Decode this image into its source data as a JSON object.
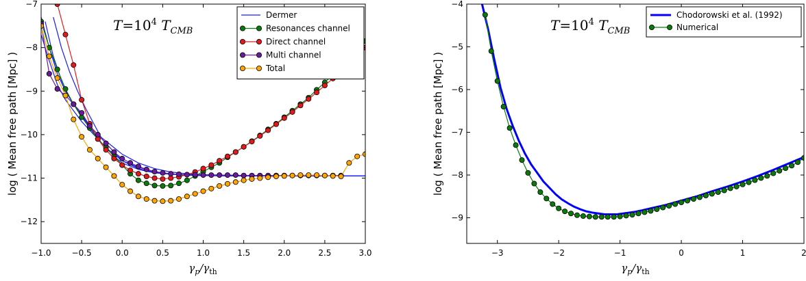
{
  "colors": {
    "dermer": "#1a1aff",
    "resonances": "#0a7a0a",
    "direct": "#e31a1c",
    "multi": "#6a1b9a",
    "total": "#ffa500",
    "chodorowski": "#0000ff",
    "numerical": "#0a7a0a"
  },
  "chart_data": [
    {
      "type": "line",
      "annotation": "T=10^4 T_CMB",
      "xlabel": "γp/γth",
      "ylabel": "log ( Mean free  path  [Mpc] )",
      "xlim": [
        -1.0,
        3.0
      ],
      "ylim": [
        -12.5,
        -7.0
      ],
      "xticks": [
        "−1.0",
        "−0.5",
        "0.0",
        "0.5",
        "1.0",
        "1.5",
        "2.0",
        "2.5",
        "3.0"
      ],
      "yticks": [
        "−7",
        "−8",
        "−9",
        "−10",
        "−11",
        "−12"
      ],
      "legend_position": "top-right",
      "grid": false,
      "series": [
        {
          "name": "Dermer",
          "style": "line",
          "color_key": "dermer",
          "curves": [
            [
              [
                -1.0,
                -7.3
              ],
              [
                -0.9,
                -8.0
              ],
              [
                -0.8,
                -8.6
              ],
              [
                -0.7,
                -9.0
              ],
              [
                -0.6,
                -9.3
              ],
              [
                -0.5,
                -9.55
              ],
              [
                -0.4,
                -9.8
              ],
              [
                -0.3,
                -10.0
              ],
              [
                -0.2,
                -10.15
              ],
              [
                -0.1,
                -10.3
              ],
              [
                0.0,
                -10.45
              ],
              [
                0.2,
                -10.65
              ],
              [
                0.4,
                -10.78
              ],
              [
                0.6,
                -10.86
              ],
              [
                0.8,
                -10.9
              ],
              [
                1.0,
                -10.92
              ],
              [
                1.5,
                -10.94
              ],
              [
                2.0,
                -10.95
              ],
              [
                3.0,
                -10.95
              ]
            ],
            [
              [
                -1.0,
                -7.7
              ],
              [
                -0.9,
                -8.3
              ],
              [
                -0.8,
                -8.85
              ],
              [
                -0.7,
                -9.2
              ],
              [
                -0.6,
                -9.45
              ],
              [
                -0.5,
                -9.7
              ],
              [
                -0.4,
                -9.9
              ],
              [
                -0.3,
                -10.1
              ],
              [
                -0.2,
                -10.3
              ],
              [
                -0.1,
                -10.45
              ],
              [
                0.0,
                -10.6
              ],
              [
                0.2,
                -10.75
              ],
              [
                0.4,
                -10.85
              ],
              [
                0.6,
                -10.9
              ],
              [
                0.8,
                -10.93
              ],
              [
                1.0,
                -10.94
              ],
              [
                1.5,
                -10.95
              ],
              [
                3.0,
                -10.95
              ]
            ],
            [
              [
                -0.95,
                -7.4
              ],
              [
                -0.85,
                -8.2
              ],
              [
                -0.75,
                -8.75
              ],
              [
                -0.65,
                -9.15
              ],
              [
                -0.55,
                -9.45
              ],
              [
                -0.45,
                -9.7
              ],
              [
                -0.35,
                -9.95
              ],
              [
                -0.25,
                -10.2
              ],
              [
                -0.1,
                -10.5
              ],
              [
                0.0,
                -10.65
              ],
              [
                0.2,
                -10.8
              ],
              [
                0.4,
                -10.88
              ],
              [
                0.6,
                -10.91
              ],
              [
                0.8,
                -10.93
              ],
              [
                1.0,
                -10.94
              ],
              [
                1.5,
                -10.95
              ],
              [
                3.0,
                -10.95
              ]
            ],
            [
              [
                -0.85,
                -7.3
              ],
              [
                -0.75,
                -8.0
              ],
              [
                -0.65,
                -8.55
              ],
              [
                -0.55,
                -9.0
              ],
              [
                -0.45,
                -9.4
              ],
              [
                -0.35,
                -9.75
              ],
              [
                -0.25,
                -10.1
              ],
              [
                -0.1,
                -10.4
              ],
              [
                0.0,
                -10.6
              ],
              [
                0.2,
                -10.78
              ],
              [
                0.4,
                -10.87
              ],
              [
                0.6,
                -10.91
              ],
              [
                0.8,
                -10.93
              ],
              [
                1.0,
                -10.94
              ],
              [
                1.5,
                -10.95
              ],
              [
                3.0,
                -10.95
              ]
            ]
          ]
        },
        {
          "name": "Resonances channel",
          "style": "line-marker",
          "color_key": "resonances",
          "x": [
            -1.0,
            -0.9,
            -0.8,
            -0.7,
            -0.6,
            -0.5,
            -0.4,
            -0.3,
            -0.2,
            -0.1,
            0.0,
            0.1,
            0.2,
            0.3,
            0.4,
            0.5,
            0.6,
            0.7,
            0.8,
            0.9,
            1.0,
            1.1,
            1.2,
            1.3,
            1.4,
            1.5,
            1.6,
            1.7,
            1.8,
            1.9,
            2.0,
            2.1,
            2.2,
            2.3,
            2.4,
            2.5,
            2.6,
            2.7,
            2.8,
            2.9,
            3.0
          ],
          "y": [
            -7.4,
            -8.0,
            -8.5,
            -8.95,
            -9.3,
            -9.6,
            -9.85,
            -10.1,
            -10.3,
            -10.5,
            -10.7,
            -10.9,
            -11.05,
            -11.12,
            -11.17,
            -11.18,
            -11.17,
            -11.12,
            -11.05,
            -10.95,
            -10.85,
            -10.75,
            -10.65,
            -10.52,
            -10.4,
            -10.28,
            -10.15,
            -10.02,
            -9.88,
            -9.75,
            -9.6,
            -9.45,
            -9.3,
            -9.15,
            -8.97,
            -8.8,
            -8.62,
            -8.45,
            -8.25,
            -8.05,
            -7.85
          ]
        },
        {
          "name": "Direct channel",
          "style": "line-marker",
          "color_key": "direct",
          "x": [
            -0.8,
            -0.7,
            -0.6,
            -0.5,
            -0.4,
            -0.3,
            -0.2,
            -0.1,
            0.0,
            0.1,
            0.2,
            0.3,
            0.4,
            0.5,
            0.6,
            0.7,
            0.8,
            0.9,
            1.0,
            1.1,
            1.2,
            1.3,
            1.4,
            1.5,
            1.6,
            1.7,
            1.8,
            1.9,
            2.0,
            2.1,
            2.2,
            2.3,
            2.4,
            2.5,
            2.6,
            2.7,
            2.8,
            2.9,
            3.0
          ],
          "y": [
            -7.0,
            -7.7,
            -8.4,
            -9.2,
            -9.75,
            -10.1,
            -10.35,
            -10.55,
            -10.7,
            -10.82,
            -10.9,
            -10.96,
            -11.0,
            -11.02,
            -11.0,
            -10.97,
            -10.92,
            -10.86,
            -10.78,
            -10.7,
            -10.6,
            -10.5,
            -10.4,
            -10.28,
            -10.16,
            -10.03,
            -9.9,
            -9.76,
            -9.62,
            -9.48,
            -9.33,
            -9.18,
            -9.03,
            -8.87,
            -8.71,
            -8.55,
            -8.38,
            -8.2,
            -8.0
          ]
        },
        {
          "name": "Multi channel",
          "style": "line-marker",
          "color_key": "multi",
          "x": [
            -1.0,
            -0.9,
            -0.8,
            -0.7,
            -0.6,
            -0.5,
            -0.4,
            -0.3,
            -0.2,
            -0.1,
            0.0,
            0.1,
            0.2,
            0.3,
            0.4,
            0.5,
            0.6,
            0.7,
            0.8,
            0.9,
            1.0,
            1.1,
            1.2,
            1.3,
            1.4,
            1.5,
            1.6,
            1.7,
            1.8,
            1.9,
            2.0,
            2.1,
            2.2,
            2.3,
            2.4,
            2.5,
            2.6,
            2.7
          ],
          "y": [
            -7.45,
            -8.6,
            -8.95,
            -9.1,
            -9.3,
            -9.5,
            -9.8,
            -10.0,
            -10.2,
            -10.4,
            -10.55,
            -10.65,
            -10.73,
            -10.8,
            -10.85,
            -10.88,
            -10.9,
            -10.91,
            -10.92,
            -10.92,
            -10.93,
            -10.93,
            -10.93,
            -10.93,
            -10.93,
            -10.94,
            -10.94,
            -10.94,
            -10.94,
            -10.94,
            -10.94,
            -10.94,
            -10.94,
            -10.94,
            -10.94,
            -10.94,
            -10.94,
            -10.94
          ]
        },
        {
          "name": "Total",
          "style": "line-marker",
          "color_key": "total",
          "x": [
            -1.0,
            -0.9,
            -0.8,
            -0.7,
            -0.6,
            -0.5,
            -0.4,
            -0.3,
            -0.2,
            -0.1,
            0.0,
            0.1,
            0.2,
            0.3,
            0.4,
            0.5,
            0.6,
            0.7,
            0.8,
            0.9,
            1.0,
            1.1,
            1.2,
            1.3,
            1.4,
            1.5,
            1.6,
            1.7,
            1.8,
            1.9,
            2.0,
            2.1,
            2.2,
            2.3,
            2.4,
            2.5,
            2.6,
            2.7,
            2.8,
            2.9,
            3.0
          ],
          "y": [
            -7.5,
            -8.2,
            -8.7,
            -9.1,
            -9.65,
            -10.05,
            -10.35,
            -10.55,
            -10.75,
            -10.95,
            -11.15,
            -11.3,
            -11.42,
            -11.48,
            -11.52,
            -11.53,
            -11.52,
            -11.48,
            -11.42,
            -11.36,
            -11.3,
            -11.24,
            -11.18,
            -11.13,
            -11.09,
            -11.05,
            -11.02,
            -11.0,
            -10.98,
            -10.96,
            -10.95,
            -10.94,
            -10.93,
            -10.93,
            -10.93,
            -10.94,
            -10.95,
            -10.96,
            -10.65,
            -10.5,
            -10.45
          ]
        }
      ]
    },
    {
      "type": "line",
      "annotation": "T=10^4 T_CMB",
      "xlabel": "γp/γth",
      "ylabel": "log ( Mean free  path  [Mpc] )",
      "xlim": [
        -3.5,
        2.0
      ],
      "ylim": [
        -9.6,
        -4.0
      ],
      "xticks": [
        "−3",
        "−2",
        "−1",
        "0",
        "1",
        "2"
      ],
      "yticks": [
        "−4",
        "−5",
        "−6",
        "−7",
        "−8",
        "−9"
      ],
      "legend_position": "top-right",
      "grid": false,
      "series": [
        {
          "name": "Chodorowski et al. (1992)",
          "style": "line",
          "color_key": "chodorowski",
          "x": [
            -3.25,
            -3.15,
            -3.05,
            -2.95,
            -2.85,
            -2.75,
            -2.65,
            -2.55,
            -2.45,
            -2.35,
            -2.25,
            -2.15,
            -2.05,
            -1.95,
            -1.85,
            -1.75,
            -1.65,
            -1.55,
            -1.45,
            -1.35,
            -1.25,
            -1.15,
            -1.05,
            -0.95,
            -0.85,
            -0.75,
            -0.65,
            -0.5,
            -0.25,
            0.0,
            0.25,
            0.5,
            0.75,
            1.0,
            1.25,
            1.5,
            1.75,
            2.0
          ],
          "y": [
            -4.0,
            -4.6,
            -5.3,
            -5.95,
            -6.45,
            -6.85,
            -7.2,
            -7.5,
            -7.75,
            -7.95,
            -8.15,
            -8.3,
            -8.45,
            -8.57,
            -8.66,
            -8.74,
            -8.8,
            -8.85,
            -8.88,
            -8.9,
            -8.92,
            -8.92,
            -8.92,
            -8.9,
            -8.88,
            -8.86,
            -8.83,
            -8.78,
            -8.7,
            -8.6,
            -8.5,
            -8.38,
            -8.27,
            -8.15,
            -8.02,
            -7.88,
            -7.73,
            -7.58
          ]
        },
        {
          "name": "Numerical",
          "style": "line-marker",
          "color_key": "numerical",
          "x": [
            -3.2,
            -3.1,
            -3.0,
            -2.9,
            -2.8,
            -2.7,
            -2.6,
            -2.5,
            -2.4,
            -2.3,
            -2.2,
            -2.1,
            -2.0,
            -1.9,
            -1.8,
            -1.7,
            -1.6,
            -1.5,
            -1.4,
            -1.3,
            -1.2,
            -1.1,
            -1.0,
            -0.9,
            -0.8,
            -0.7,
            -0.6,
            -0.5,
            -0.4,
            -0.3,
            -0.2,
            -0.1,
            0.0,
            0.1,
            0.2,
            0.3,
            0.4,
            0.5,
            0.6,
            0.7,
            0.8,
            0.9,
            1.0,
            1.1,
            1.2,
            1.3,
            1.4,
            1.5,
            1.6,
            1.7,
            1.8,
            1.9,
            2.0
          ],
          "y": [
            -4.25,
            -5.1,
            -5.8,
            -6.4,
            -6.9,
            -7.3,
            -7.65,
            -7.95,
            -8.2,
            -8.4,
            -8.55,
            -8.68,
            -8.78,
            -8.85,
            -8.9,
            -8.94,
            -8.96,
            -8.97,
            -8.98,
            -8.98,
            -8.98,
            -8.98,
            -8.97,
            -8.95,
            -8.93,
            -8.9,
            -8.87,
            -8.84,
            -8.8,
            -8.76,
            -8.72,
            -8.68,
            -8.64,
            -8.6,
            -8.56,
            -8.52,
            -8.48,
            -8.44,
            -8.4,
            -8.36,
            -8.31,
            -8.27,
            -8.22,
            -8.17,
            -8.12,
            -8.07,
            -8.02,
            -7.96,
            -7.9,
            -7.84,
            -7.78,
            -7.7,
            -7.6
          ]
        }
      ]
    }
  ]
}
